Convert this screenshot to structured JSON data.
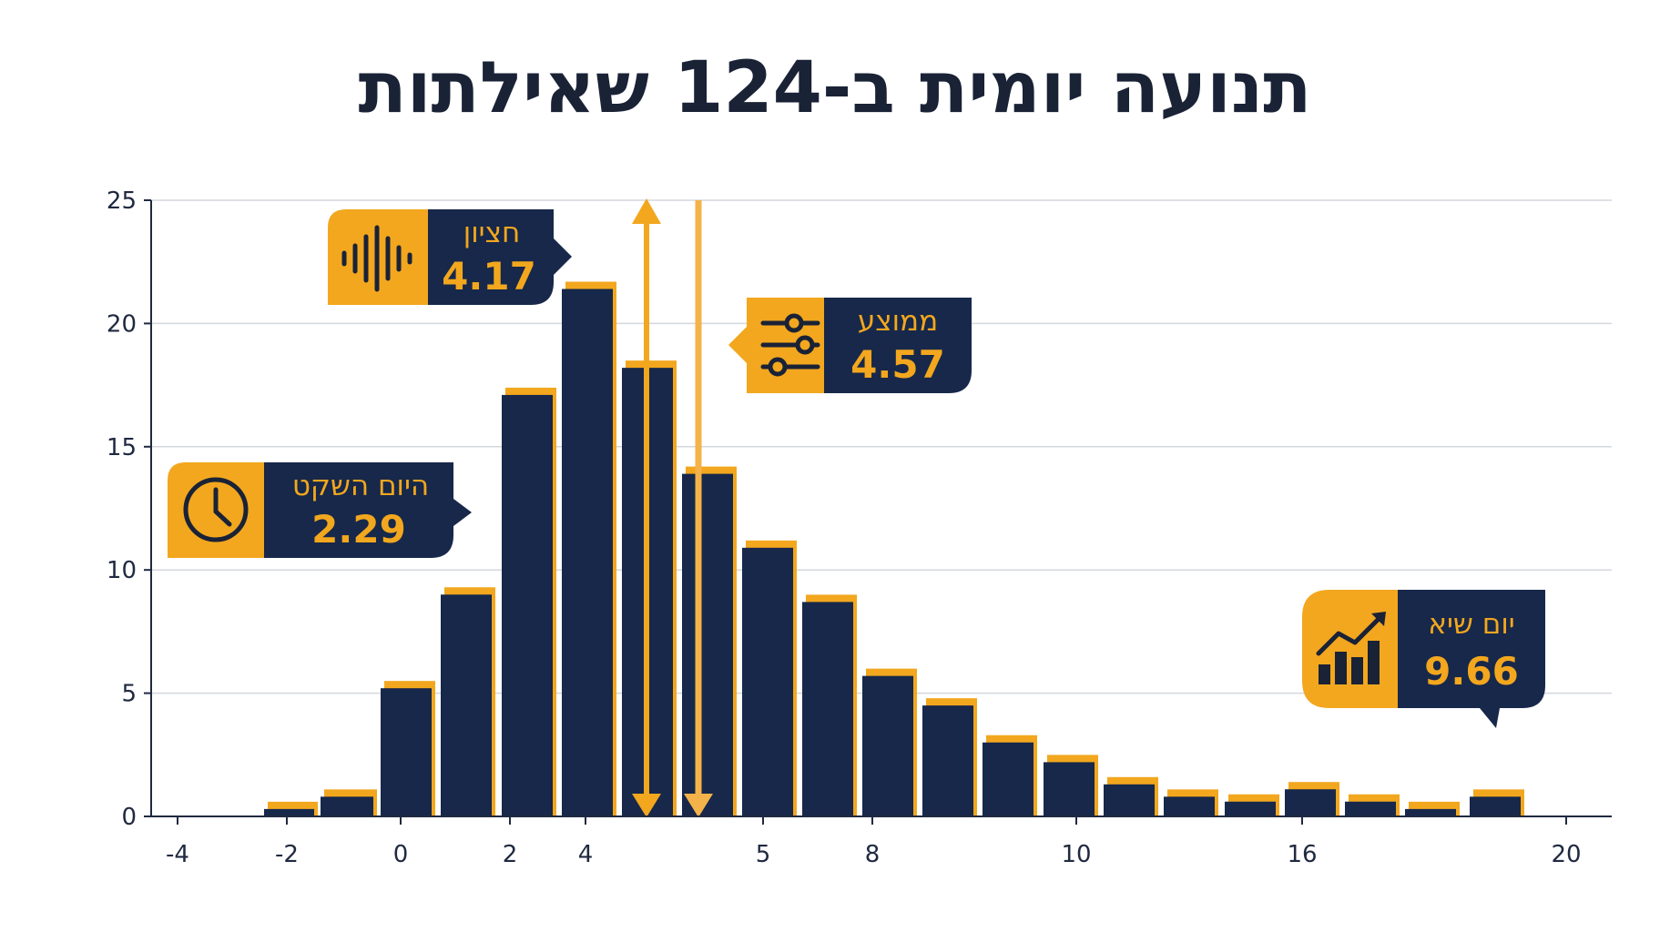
{
  "title": "תנועה יומית ב-124 שאילתות",
  "colors": {
    "bar": "#17284a",
    "accent": "#f2a71e",
    "grid": "#d3d7de",
    "axis": "#1f2940",
    "text": "#1a2236"
  },
  "chart_data": {
    "type": "bar",
    "chart_kind": "histogram",
    "ylim": [
      0,
      25
    ],
    "y_ticks": [
      0,
      5,
      10,
      15,
      20,
      25
    ],
    "x_tick_labels": [
      "-4",
      "-2",
      "0",
      "2",
      "4",
      "5",
      "8",
      "10",
      "16",
      "20"
    ],
    "grid": true,
    "values": [
      0.3,
      0.8,
      5.2,
      9.0,
      17.1,
      21.4,
      18.2,
      13.9,
      10.9,
      8.7,
      5.7,
      4.5,
      3.0,
      2.2,
      1.3,
      0.8,
      0.6,
      1.1,
      0.6,
      0.3,
      0.8
    ],
    "markers": [
      {
        "label": "חציון",
        "value": "4.17",
        "icon": "waveform-icon"
      },
      {
        "label": "ממוצע",
        "value": "4.57",
        "icon": "sliders-icon"
      },
      {
        "label": "היום השקט",
        "value": "2.29",
        "icon": "clock-icon"
      },
      {
        "label": "יום שיא",
        "value": "9.66",
        "icon": "bar-chart-trend-icon"
      }
    ]
  }
}
